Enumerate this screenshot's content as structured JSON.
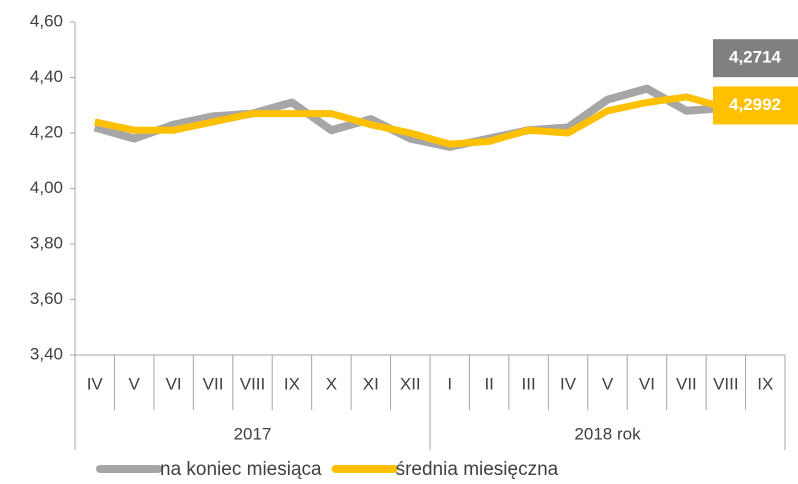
{
  "chart_data": {
    "type": "line",
    "categories": [
      "IV",
      "V",
      "VI",
      "VII",
      "VIII",
      "IX",
      "X",
      "XI",
      "XII",
      "I",
      "II",
      "III",
      "IV",
      "V",
      "VI",
      "VII",
      "VIII",
      "IX"
    ],
    "x_groups": [
      {
        "label": "2017",
        "count": 9
      },
      {
        "label": "2018 rok",
        "count": 9
      }
    ],
    "series": [
      {
        "name": "na koniec miesiąca",
        "color": "#a6a6a6",
        "values": [
          4.22,
          4.18,
          4.23,
          4.26,
          4.27,
          4.31,
          4.21,
          4.25,
          4.18,
          4.15,
          4.18,
          4.21,
          4.22,
          4.32,
          4.36,
          4.28,
          4.29,
          4.2714
        ],
        "value_labels": [
          null,
          null,
          null,
          null,
          null,
          null,
          null,
          null,
          null,
          null,
          null,
          null,
          null,
          null,
          null,
          null,
          null,
          "4,2714"
        ],
        "label_color": "#808080"
      },
      {
        "name": "średnia miesięczna",
        "color": "#ffc000",
        "values": [
          4.24,
          4.21,
          4.21,
          4.24,
          4.27,
          4.27,
          4.27,
          4.23,
          4.2,
          4.16,
          4.17,
          4.21,
          4.2,
          4.28,
          4.31,
          4.33,
          4.29,
          4.2992
        ],
        "value_labels": [
          null,
          null,
          null,
          null,
          null,
          null,
          null,
          null,
          null,
          null,
          null,
          null,
          null,
          null,
          null,
          null,
          null,
          "4,2992"
        ],
        "label_color": "#ffc000"
      }
    ],
    "ylim": [
      3.4,
      4.6
    ],
    "yticks": [
      {
        "value": 3.4,
        "label": "3,40"
      },
      {
        "value": 3.6,
        "label": "3,60"
      },
      {
        "value": 3.8,
        "label": "3,80"
      },
      {
        "value": 4.0,
        "label": "4,00"
      },
      {
        "value": 4.2,
        "label": "4,20"
      },
      {
        "value": 4.4,
        "label": "4,40"
      },
      {
        "value": 4.6,
        "label": "4,60"
      }
    ],
    "legend": "bottom"
  }
}
